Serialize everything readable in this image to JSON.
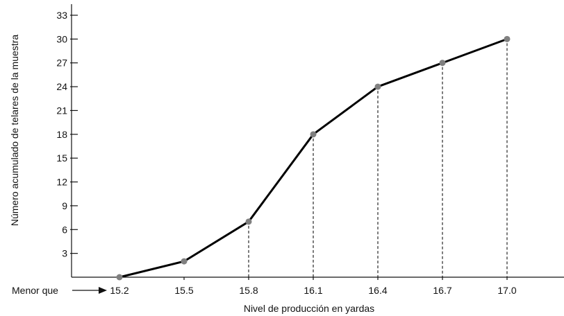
{
  "chart_data": {
    "type": "line",
    "title": "",
    "xlabel": "Nivel de producción en yardas",
    "ylabel": "Número acumulado de telares de la muestra",
    "x_prefix_label": "Menor que",
    "x": [
      15.2,
      15.5,
      15.8,
      16.1,
      16.4,
      16.7,
      17.0
    ],
    "x_tick_labels": [
      "15.2",
      "15.5",
      "15.8",
      "16.1",
      "16.4",
      "16.7",
      "17.0"
    ],
    "y": [
      0,
      2,
      7,
      18,
      24,
      27,
      30
    ],
    "y_ticks": [
      3,
      6,
      9,
      12,
      15,
      18,
      21,
      24,
      27,
      30,
      33
    ],
    "y_tick_labels": [
      "3",
      "6",
      "9",
      "12",
      "15",
      "18",
      "21",
      "24",
      "27",
      "30",
      "33"
    ],
    "ylim": [
      0,
      33
    ],
    "grid": false,
    "dashed_drop_lines": true,
    "colors": {
      "line": "#000000",
      "points": "#808080",
      "axes": "#111111"
    }
  }
}
